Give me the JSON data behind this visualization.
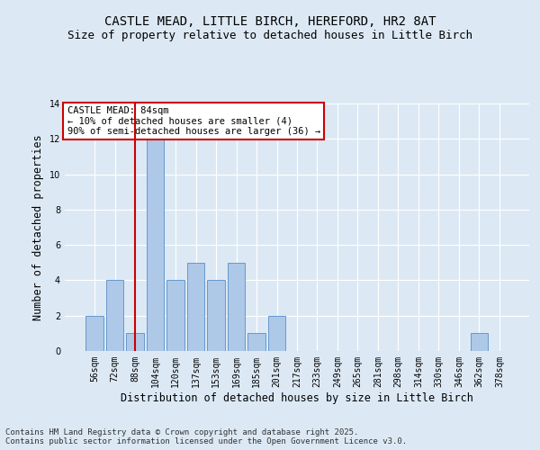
{
  "title": "CASTLE MEAD, LITTLE BIRCH, HEREFORD, HR2 8AT",
  "subtitle": "Size of property relative to detached houses in Little Birch",
  "xlabel": "Distribution of detached houses by size in Little Birch",
  "ylabel": "Number of detached properties",
  "categories": [
    "56sqm",
    "72sqm",
    "88sqm",
    "104sqm",
    "120sqm",
    "137sqm",
    "153sqm",
    "169sqm",
    "185sqm",
    "201sqm",
    "217sqm",
    "233sqm",
    "249sqm",
    "265sqm",
    "281sqm",
    "298sqm",
    "314sqm",
    "330sqm",
    "346sqm",
    "362sqm",
    "378sqm"
  ],
  "values": [
    2,
    4,
    1,
    12,
    4,
    5,
    4,
    5,
    1,
    2,
    0,
    0,
    0,
    0,
    0,
    0,
    0,
    0,
    0,
    1,
    0
  ],
  "bar_color": "#aec8e8",
  "bar_edge_color": "#6699cc",
  "vline_x": 2,
  "vline_color": "#cc0000",
  "annotation_text": "CASTLE MEAD: 84sqm\n← 10% of detached houses are smaller (4)\n90% of semi-detached houses are larger (36) →",
  "annotation_box_color": "#ffffff",
  "annotation_box_edge": "#cc0000",
  "ylim": [
    0,
    14
  ],
  "yticks": [
    0,
    2,
    4,
    6,
    8,
    10,
    12,
    14
  ],
  "background_color": "#dce9f5",
  "plot_background": "#dce9f5",
  "grid_color": "#ffffff",
  "title_fontsize": 10,
  "subtitle_fontsize": 9,
  "xlabel_fontsize": 8.5,
  "ylabel_fontsize": 8.5,
  "tick_fontsize": 7,
  "annotation_fontsize": 7.5,
  "footer_text": "Contains HM Land Registry data © Crown copyright and database right 2025.\nContains public sector information licensed under the Open Government Licence v3.0.",
  "footer_fontsize": 6.5
}
